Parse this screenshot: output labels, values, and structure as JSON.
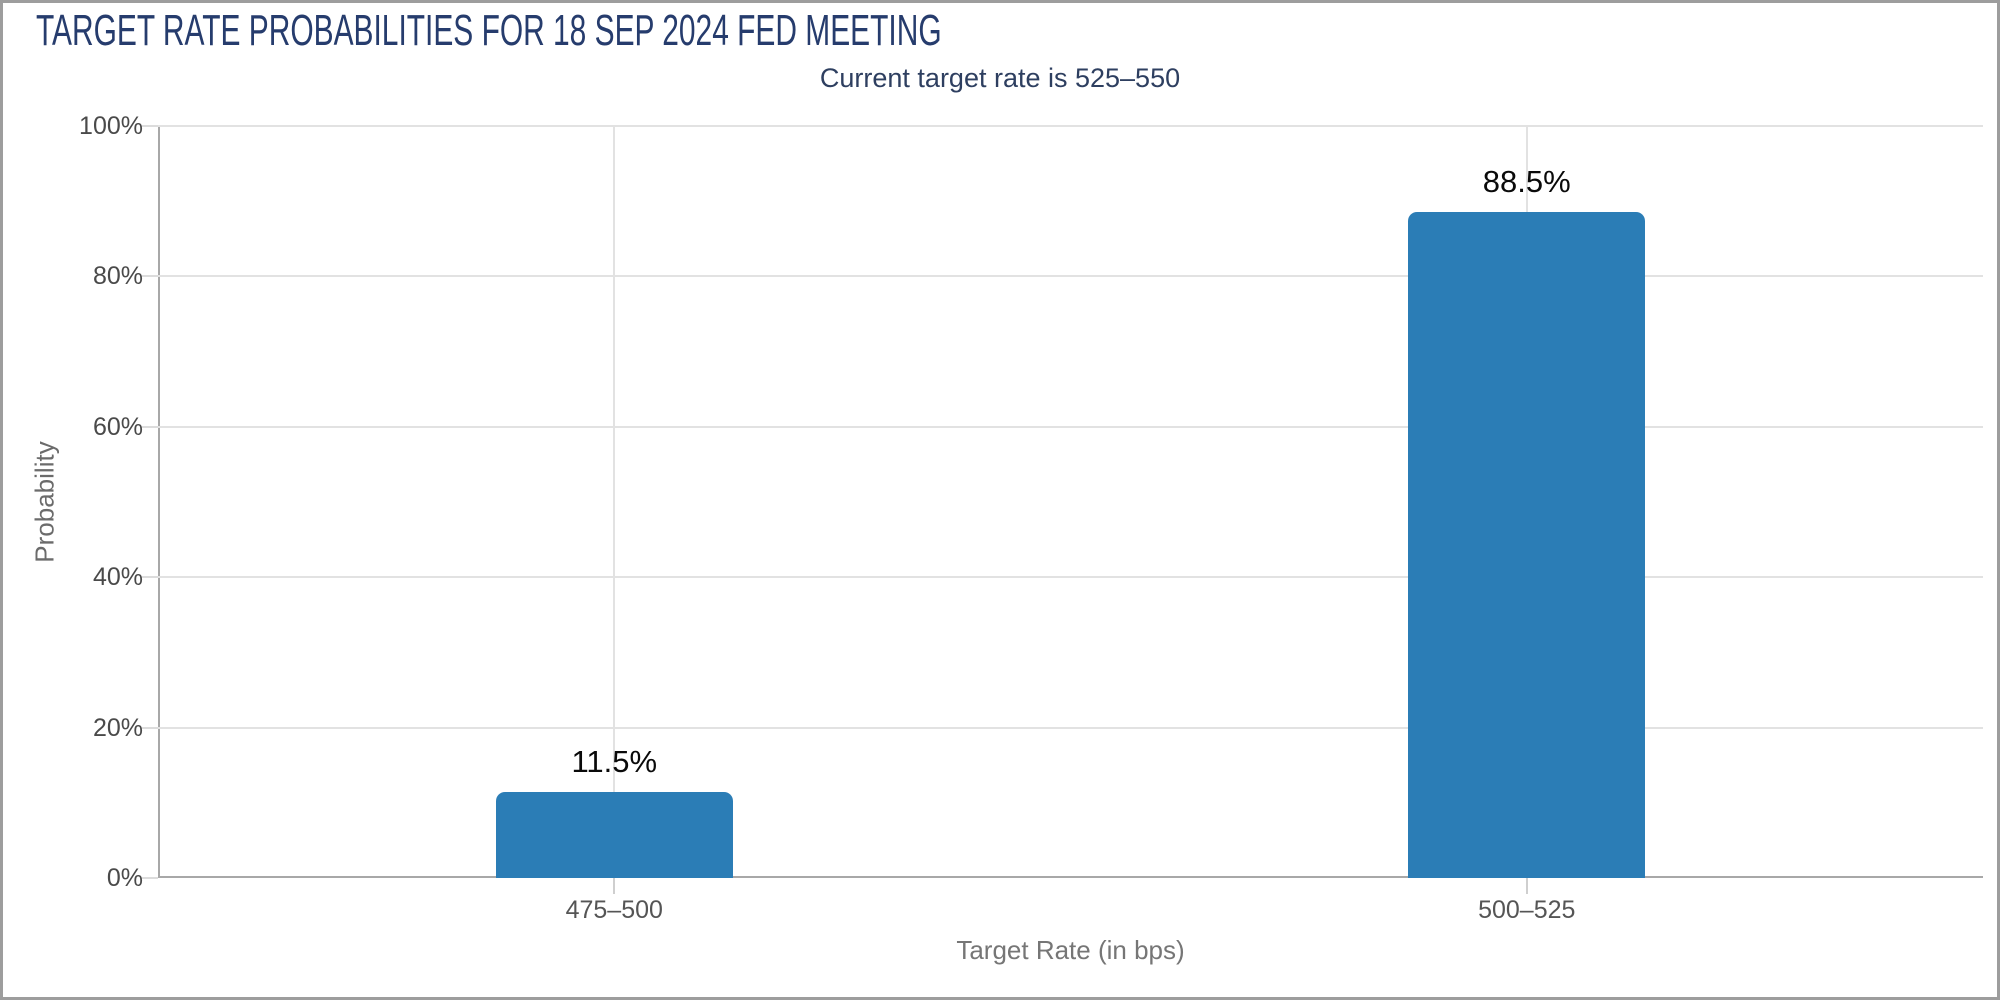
{
  "chart_data": {
    "type": "bar",
    "title": "TARGET RATE PROBABILITIES FOR 18 SEP 2024 FED MEETING",
    "subtitle": "Current target rate is 525–550",
    "categories": [
      "475–500",
      "500–525"
    ],
    "values": [
      11.5,
      88.5
    ],
    "value_labels": [
      "11.5%",
      "88.5%"
    ],
    "xlabel": "Target Rate (in bps)",
    "ylabel": "Probability",
    "ylim": [
      0,
      100
    ],
    "ytick_labels": [
      "0%",
      "20%",
      "40%",
      "60%",
      "80%",
      "100%"
    ],
    "ytick_values": [
      0,
      20,
      40,
      60,
      80,
      100
    ],
    "grid": true,
    "legend": "none",
    "colors": {
      "bar": "#2b7db6",
      "title": "#263c6d",
      "subtitle": "#2e3f60",
      "gridline": "#e2e2e2",
      "axis_line": "#a8a8a8"
    }
  }
}
